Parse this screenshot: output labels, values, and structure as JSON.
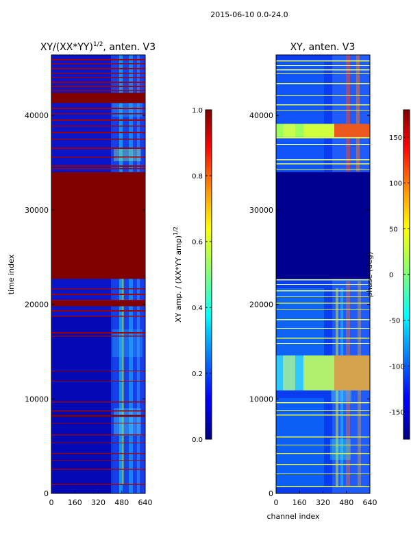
{
  "figure": {
    "suptitle": "2015-06-10 0.0-24.0",
    "xlabel": "channel index",
    "ylabel": "time index"
  },
  "chart_data": [
    {
      "type": "heatmap",
      "title_text": "XY/(XX*YY)",
      "title_sup": "1/2",
      "title_suffix": ", anten. V3",
      "xlim": [
        0,
        640
      ],
      "ylim": [
        0,
        46400
      ],
      "xticks": [
        "0",
        "160",
        "320",
        "480",
        "640"
      ],
      "yticks": [
        "0",
        "10000",
        "20000",
        "30000",
        "40000"
      ],
      "ytick_values": [
        0,
        10000,
        20000,
        30000,
        40000
      ],
      "colorbar": {
        "label_text": "XY amp. / (XX*YY amp)",
        "label_sup": "1/2",
        "range": [
          0.0,
          1.0
        ],
        "ticks": [
          "0.0",
          "0.2",
          "0.4",
          "0.6",
          "0.8",
          "1.0"
        ],
        "tick_values": [
          0,
          0.2,
          0.4,
          0.6,
          0.8,
          1.0
        ]
      },
      "saturated_bands_time": [
        [
          22700,
          34000
        ],
        [
          19800,
          20400
        ],
        [
          41300,
          42400
        ],
        [
          8100,
          8300
        ]
      ]
    },
    {
      "type": "heatmap",
      "title": "XY, anten. V3",
      "xlim": [
        0,
        640
      ],
      "ylim": [
        0,
        46400
      ],
      "xticks": [
        "0",
        "160",
        "320",
        "480",
        "640"
      ],
      "yticks": [
        "0",
        "10000",
        "20000",
        "30000",
        "40000"
      ],
      "ytick_values": [
        0,
        10000,
        20000,
        30000,
        40000
      ],
      "colorbar": {
        "label_text": "phase (deg)",
        "range": [
          -180,
          180
        ],
        "ticks": [
          "-150",
          "-100",
          "-50",
          "0",
          "50",
          "100",
          "150"
        ],
        "tick_values": [
          -150,
          -100,
          -50,
          0,
          50,
          100,
          150
        ]
      },
      "flat_band_time": [
        22700,
        34000
      ],
      "bright_bands_time": [
        [
          37700,
          39100
        ],
        [
          10900,
          14600
        ]
      ]
    }
  ]
}
